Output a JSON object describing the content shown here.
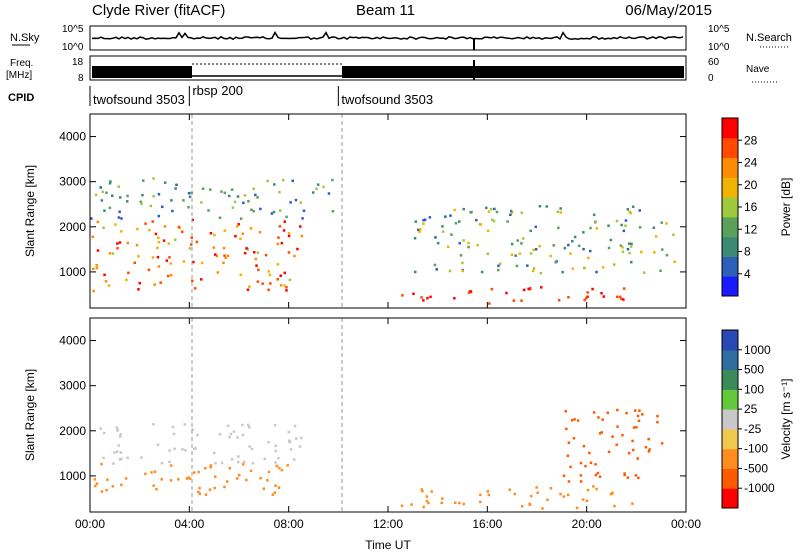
{
  "header": {
    "station": "Clyde River (fitACF)",
    "beam": "Beam 11",
    "date": "06/May/2015"
  },
  "strips": {
    "nsky_label": "N.Sky",
    "nsearch_label": "N.Search",
    "freq_label_1": "Freq.",
    "freq_label_2": "[MHz]",
    "nave_label": "Nave",
    "cpid_label": "CPID",
    "nsky_ticks": [
      "10^5",
      "10^0"
    ],
    "nsearch_ticks": [
      "10^5",
      "10^0"
    ],
    "freq_ticks": [
      "18",
      "8"
    ],
    "nave_ticks": [
      "60",
      "0"
    ],
    "cpid_segments": [
      {
        "label": "twofsound 3503",
        "start": 0.0,
        "end": 4.0
      },
      {
        "label": "rbsp 200",
        "start": 4.0,
        "end": 10.0
      },
      {
        "label": "twofsound 3503",
        "start": 10.0,
        "end": 24.0
      }
    ]
  },
  "colors": {
    "power_scale": [
      "#1a1aff",
      "#2b5fb8",
      "#3c8a74",
      "#5aa05a",
      "#a0c83c",
      "#f0b400",
      "#ff8c00",
      "#ff4a00",
      "#ff0000"
    ],
    "velocity_scale": [
      "#2848b4",
      "#2e6e9e",
      "#3c8a5a",
      "#64c83c",
      "#c8c8c8",
      "#f0c850",
      "#ff8c1e",
      "#ff5a00",
      "#ff0000"
    ]
  },
  "chart_data": [
    {
      "type": "heatmap",
      "title": "",
      "quantity": "Power",
      "xlabel": "Time UT",
      "ylabel": "Slant Range [km]",
      "xlim": [
        0,
        24
      ],
      "ylim": [
        200,
        4500
      ],
      "x_tick_labels": [
        "00:00",
        "04:00",
        "08:00",
        "12:00",
        "16:00",
        "20:00",
        "00:00"
      ],
      "y_tick_labels": [
        "1000",
        "2000",
        "3000",
        "4000"
      ],
      "colorbar": {
        "label": "Power [dB]",
        "ticks": [
          "4",
          "8",
          "12",
          "16",
          "20",
          "24",
          "28"
        ],
        "range": [
          0,
          30
        ]
      },
      "features": [
        {
          "feature": "oscillating ionospheric scatter band",
          "time_range_h": [
            0,
            8.5
          ],
          "range_km": [
            600,
            2200
          ],
          "power_db": [
            16,
            30
          ]
        },
        {
          "feature": "weak scatter",
          "time_range_h": [
            0,
            10
          ],
          "range_km": [
            2200,
            3100
          ],
          "power_db": [
            4,
            16
          ]
        },
        {
          "feature": "ground scatter",
          "time_range_h": [
            12.5,
            22
          ],
          "range_km": [
            300,
            700
          ],
          "power_db": [
            24,
            30
          ]
        },
        {
          "feature": "patchy scatter",
          "time_range_h": [
            13,
            23.5
          ],
          "range_km": [
            1000,
            2500
          ],
          "power_db": [
            4,
            20
          ]
        }
      ]
    },
    {
      "type": "heatmap",
      "title": "",
      "quantity": "Velocity",
      "xlabel": "Time UT",
      "ylabel": "Slant Range [km]",
      "xlim": [
        0,
        24
      ],
      "ylim": [
        200,
        4500
      ],
      "x_tick_labels": [
        "00:00",
        "04:00",
        "08:00",
        "12:00",
        "16:00",
        "20:00",
        "00:00"
      ],
      "y_tick_labels": [
        "1000",
        "2000",
        "3000",
        "4000"
      ],
      "colorbar": {
        "label": "Velocity [m s⁻¹]",
        "ticks": [
          "1000",
          "500",
          "100",
          "25",
          "-25",
          "-100",
          "-500",
          "-1000"
        ],
        "range": [
          -1000,
          1000
        ]
      },
      "features": [
        {
          "feature": "near-zero velocity band",
          "time_range_h": [
            0,
            8.5
          ],
          "range_km": [
            1300,
            2200
          ],
          "velocity_ms": [
            -25,
            25
          ]
        },
        {
          "feature": "negative velocity band",
          "time_range_h": [
            0,
            8.5
          ],
          "range_km": [
            600,
            1300
          ],
          "velocity_ms": [
            -500,
            -100
          ]
        },
        {
          "feature": "negative velocity ground band",
          "time_range_h": [
            12.5,
            22
          ],
          "range_km": [
            300,
            800
          ],
          "velocity_ms": [
            -500,
            -100
          ]
        },
        {
          "feature": "strong negative patches",
          "time_range_h": [
            19,
            23
          ],
          "range_km": [
            900,
            2500
          ],
          "velocity_ms": [
            -1000,
            -500
          ]
        }
      ]
    }
  ]
}
